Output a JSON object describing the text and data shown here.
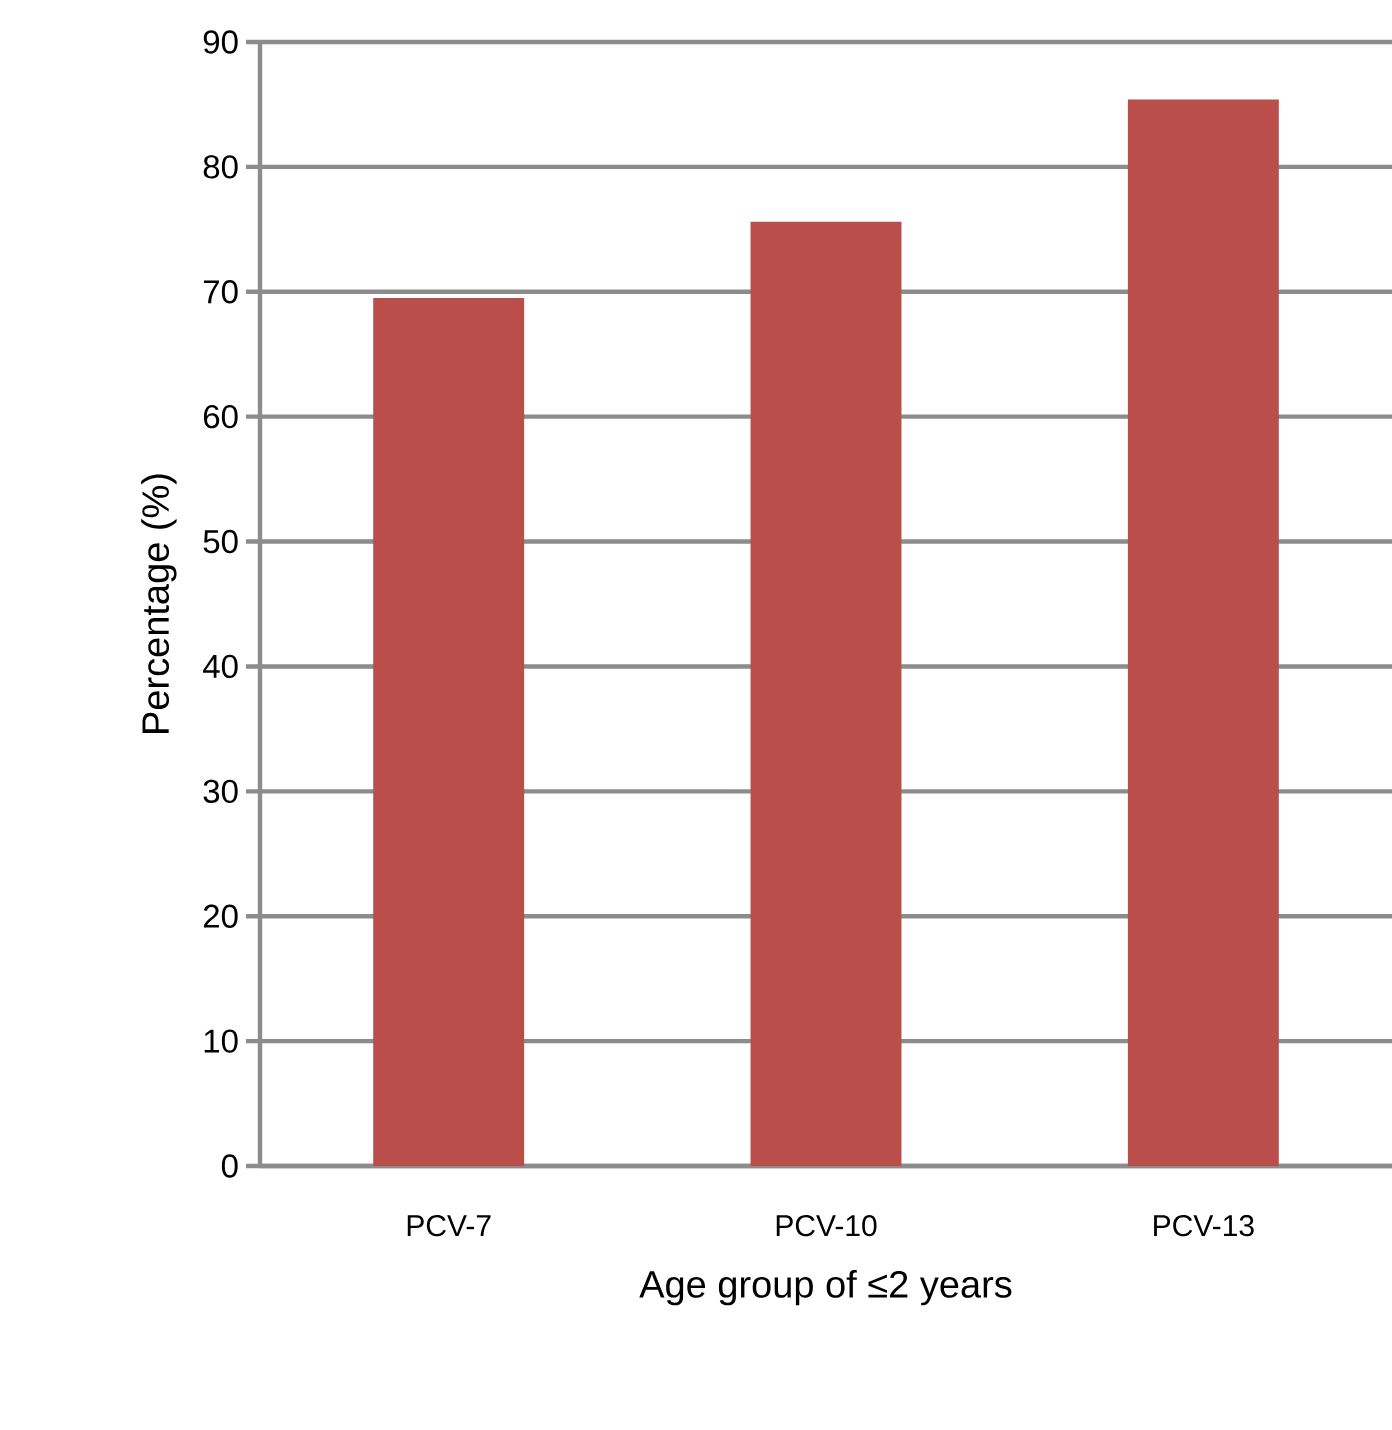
{
  "chart_data": {
    "type": "bar",
    "xlabel": "Age group of ≤2 years",
    "ylabel": "Percentage (%)",
    "categories": [
      "PCV-7",
      "PCV-10",
      "PCV-13"
    ],
    "values": [
      69.5,
      75.6,
      85.4
    ],
    "color": "#b94e4b",
    "ylim": [
      0,
      90
    ],
    "yticks": [
      0,
      10,
      20,
      30,
      40,
      50,
      60,
      70,
      80,
      90
    ],
    "grid": "y"
  }
}
